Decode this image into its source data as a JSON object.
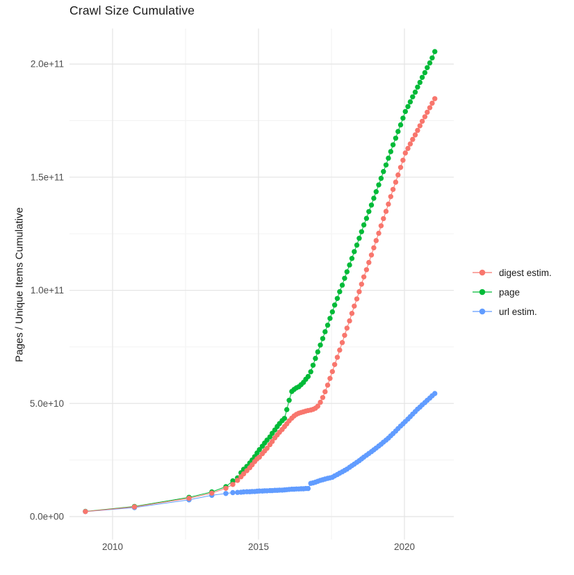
{
  "chart_data": {
    "type": "scatter-line",
    "title": "Crawl Size Cumulative",
    "xlabel": "",
    "ylabel": "Pages / Unique Items Cumulative",
    "legend_position": "right",
    "grid": "on",
    "xlim": [
      2008.5,
      2021.7
    ],
    "ylim": [
      0,
      215000000000.0
    ],
    "x_axis": {
      "major_ticks": [
        2010,
        2015,
        2020
      ],
      "major_tick_labels": [
        "2010",
        "2015",
        "2020"
      ],
      "minor_ticks": [
        2012.5,
        2017.5
      ]
    },
    "y_axis": {
      "major_ticks_billions": [
        0,
        50,
        100,
        150,
        200
      ],
      "major_tick_labels": [
        "0.0e+00",
        "5.0e+10",
        "1.0e+11",
        "1.5e+11",
        "2.0e+11"
      ],
      "minor_ticks_billions": [
        25,
        75,
        125,
        175
      ]
    },
    "x_years": [
      2009.07,
      2010.75,
      2012.62,
      2013.4,
      2013.88,
      2014.12,
      2014.28,
      2014.4,
      2014.49,
      2014.6,
      2014.7,
      2014.78,
      2014.87,
      2014.95,
      2015.03,
      2015.13,
      2015.21,
      2015.29,
      2015.39,
      2015.47,
      2015.56,
      2015.64,
      2015.72,
      2015.81,
      2015.89,
      2015.97,
      2016.05,
      2016.14,
      2016.22,
      2016.3,
      2016.38,
      2016.46,
      2016.54,
      2016.62,
      2016.7,
      2016.79,
      2016.87,
      2016.95,
      2017.03,
      2017.12,
      2017.2,
      2017.28,
      2017.37,
      2017.45,
      2017.53,
      2017.61,
      2017.7,
      2017.78,
      2017.87,
      2017.95,
      2018.03,
      2018.12,
      2018.2,
      2018.28,
      2018.37,
      2018.45,
      2018.53,
      2018.61,
      2018.7,
      2018.78,
      2018.87,
      2018.95,
      2019.03,
      2019.12,
      2019.2,
      2019.28,
      2019.37,
      2019.45,
      2019.53,
      2019.61,
      2019.7,
      2019.78,
      2019.87,
      2019.95,
      2020.03,
      2020.12,
      2020.2,
      2020.28,
      2020.37,
      2020.45,
      2020.53,
      2020.61,
      2020.7,
      2020.78,
      2020.87,
      2020.95,
      2021.04
    ],
    "series": [
      {
        "name": "digest estim.",
        "color": "#F8766D",
        "values_billions": [
          2.2,
          4.3,
          8.1,
          10.4,
          12.5,
          14.2,
          16.0,
          17.6,
          18.9,
          20.3,
          21.6,
          22.9,
          24.3,
          25.5,
          26.3,
          27.8,
          29.0,
          30.2,
          31.8,
          33.2,
          34.8,
          36.1,
          37.3,
          38.5,
          39.8,
          41.0,
          42.3,
          43.5,
          44.5,
          45.2,
          45.7,
          46.0,
          46.3,
          46.6,
          46.9,
          47.1,
          47.4,
          47.9,
          48.8,
          50.5,
          52.6,
          55.2,
          58.1,
          61.1,
          64.1,
          67.2,
          70.4,
          73.6,
          76.9,
          80.1,
          83.3,
          86.5,
          89.8,
          93.0,
          96.2,
          99.4,
          102.7,
          105.9,
          109.1,
          112.3,
          115.6,
          118.8,
          122.0,
          125.2,
          128.5,
          131.7,
          134.9,
          138.1,
          141.4,
          144.6,
          147.8,
          151.0,
          154.3,
          157.5,
          160.7,
          162.7,
          164.7,
          166.7,
          168.7,
          170.7,
          172.7,
          174.7,
          176.7,
          178.7,
          180.7,
          182.7,
          184.7
        ]
      },
      {
        "name": "page",
        "color": "#00BA38",
        "values_billions": [
          2.3,
          4.5,
          8.5,
          10.9,
          13.2,
          15.8,
          17.1,
          19.4,
          20.9,
          22.2,
          23.7,
          25.0,
          26.5,
          28.1,
          29.6,
          31.1,
          32.5,
          33.8,
          35.2,
          36.8,
          38.3,
          39.8,
          41.1,
          42.4,
          43.4,
          47.3,
          51.4,
          55.3,
          56.2,
          56.9,
          57.4,
          58.3,
          59.3,
          60.7,
          61.9,
          64.0,
          66.9,
          69.9,
          72.8,
          75.8,
          78.7,
          81.7,
          84.6,
          87.6,
          90.5,
          93.5,
          96.4,
          99.4,
          102.3,
          105.3,
          108.2,
          111.2,
          114.1,
          117.1,
          120.0,
          123.0,
          125.9,
          128.9,
          131.8,
          134.8,
          137.7,
          140.7,
          143.6,
          146.6,
          149.5,
          152.5,
          155.4,
          158.4,
          161.3,
          164.3,
          167.2,
          170.2,
          173.1,
          176.1,
          179.0,
          181.2,
          183.3,
          185.5,
          187.6,
          189.8,
          191.9,
          194.1,
          196.2,
          198.4,
          200.5,
          202.7,
          205.5
        ]
      },
      {
        "name": "url estim.",
        "color": "#619CFF",
        "values_billions": [
          2.2,
          4.0,
          7.4,
          9.4,
          10.2,
          10.6,
          10.7,
          10.8,
          10.9,
          11.0,
          11.0,
          11.1,
          11.1,
          11.2,
          11.3,
          11.3,
          11.4,
          11.4,
          11.5,
          11.5,
          11.6,
          11.6,
          11.7,
          11.7,
          11.8,
          11.9,
          12.0,
          12.1,
          12.1,
          12.2,
          12.2,
          12.3,
          12.3,
          12.4,
          12.4,
          14.7,
          14.9,
          15.2,
          15.6,
          16.0,
          16.3,
          16.6,
          16.9,
          17.1,
          17.4,
          18.0,
          18.6,
          19.2,
          19.8,
          20.4,
          21.0,
          21.8,
          22.5,
          23.2,
          24.0,
          24.7,
          25.5,
          26.3,
          27.1,
          27.9,
          28.7,
          29.5,
          30.3,
          31.2,
          32.0,
          32.9,
          33.8,
          34.7,
          35.7,
          36.7,
          37.8,
          38.9,
          40.0,
          41.0,
          42.0,
          43.1,
          44.2,
          45.3,
          46.4,
          47.5,
          48.4,
          49.4,
          50.4,
          51.4,
          52.4,
          53.4,
          54.4
        ]
      }
    ]
  },
  "colors": {
    "background": "#ffffff",
    "grid_major": "#e4e4e4",
    "grid_minor": "#f1f1f1",
    "axis_text": "#4d4d4d",
    "title_text": "#1a1a1a"
  }
}
